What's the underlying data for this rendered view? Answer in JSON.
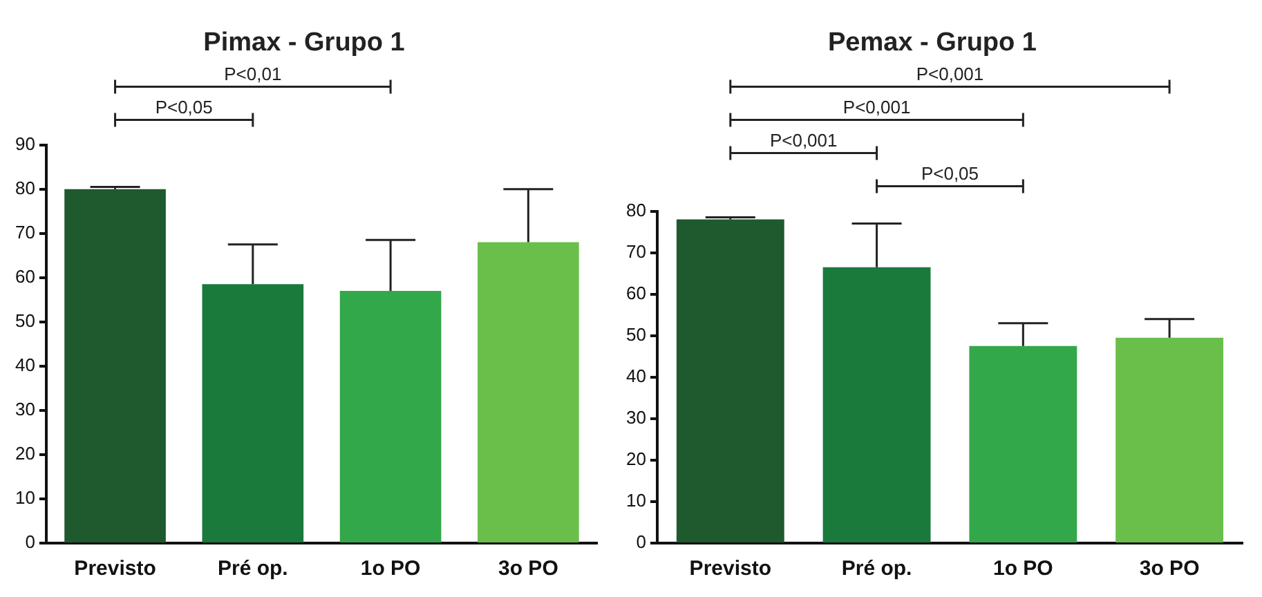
{
  "chart_data": [
    {
      "type": "bar",
      "title": "Pimax - Grupo 1",
      "categories": [
        "Previsto",
        "Pré op.",
        "1o PO",
        "3o PO"
      ],
      "values": [
        80,
        58.5,
        57,
        68
      ],
      "colors": [
        "#1e5a2e",
        "#1a7a3c",
        "#33a84a",
        "#6abf4b"
      ],
      "errors": [
        [
          80,
          80.5
        ],
        [
          58.5,
          67.5
        ],
        [
          57,
          68.5
        ],
        [
          68,
          80
        ]
      ],
      "ylim": [
        0,
        90
      ],
      "yticks": [
        0,
        10,
        20,
        30,
        40,
        50,
        60,
        70,
        80,
        90
      ],
      "grid": false,
      "legend": false,
      "annotations": [
        "P<0,01",
        "P<0,05"
      ]
    },
    {
      "type": "bar",
      "title": "Pemax - Grupo 1",
      "categories": [
        "Previsto",
        "Pré op.",
        "1o PO",
        "3o PO"
      ],
      "values": [
        78,
        66.5,
        47.5,
        49.5
      ],
      "colors": [
        "#1e5a2e",
        "#1a7a3c",
        "#33a84a",
        "#6abf4b"
      ],
      "errors": [
        [
          78,
          78.5
        ],
        [
          66.5,
          77
        ],
        [
          47.5,
          53
        ],
        [
          49.5,
          54
        ]
      ],
      "ylim": [
        0,
        80
      ],
      "yticks": [
        0,
        10,
        20,
        30,
        40,
        50,
        60,
        70,
        80
      ],
      "grid": false,
      "legend": false,
      "annotations": [
        "P<0,001",
        "P<0,001",
        "P<0,001",
        "P<0,05"
      ]
    }
  ]
}
